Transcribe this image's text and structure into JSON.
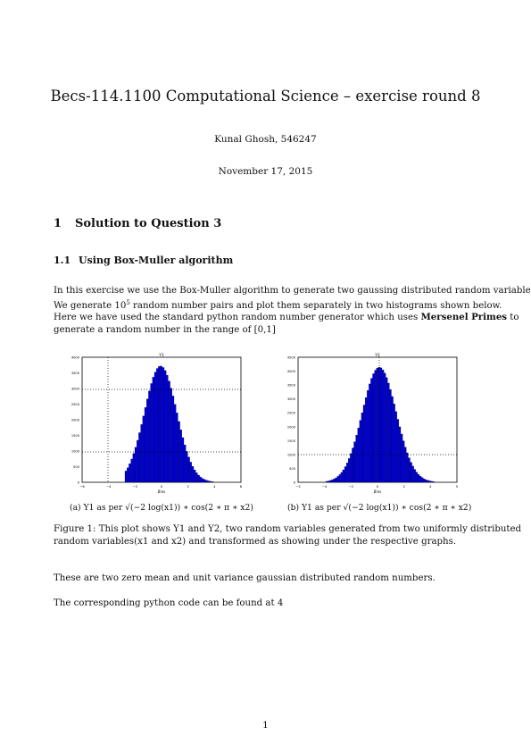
{
  "header": {
    "title": "Becs-114.1100 Computational Science – exercise round 8",
    "author": "Kunal Ghosh, 546247",
    "date": "November 17, 2015"
  },
  "section": {
    "number": "1",
    "title": "Solution to Question 3"
  },
  "subsection": {
    "number": "1.1",
    "title": "Using Box-Muller algorithm"
  },
  "paragraph1": {
    "line1": "In this exercise we use the Box-Muller algorithm to generate two gaussing distributed random variables.",
    "line2_pre": "We generate 10",
    "line2_exp": "5",
    "line2_post": " random number pairs and plot them separately in two histograms shown below.",
    "line3_pre": "Here we have used the standard python random number generator which uses ",
    "line3_bold": "Mersenel Primes",
    "line3_post": " to",
    "line4": "generate a random number in the range of [0,1]"
  },
  "figures": [
    {
      "subcaption_label": "(a)",
      "subcaption": "Y1 as per √(−2 log(x1)) ∗ cos(2 ∗ π ∗ x2)",
      "plot_title": "Y1",
      "xlabel": "Bins",
      "xticks": [
        "−6",
        "−4",
        "−2",
        "0",
        "2",
        "4",
        "6"
      ],
      "yticks": [
        "0",
        "500",
        "1000",
        "1500",
        "2000",
        "2500",
        "3000",
        "3500",
        "4000"
      ]
    },
    {
      "subcaption_label": "(b)",
      "subcaption": "Y1 as per √(−2 log(x1)) ∗ cos(2 ∗ π ∗ x2)",
      "plot_title": "Y2",
      "xlabel": "Bins",
      "xticks": [
        "−2",
        "−4",
        "−2",
        "0",
        "2",
        "4",
        "5"
      ],
      "yticks": [
        "0",
        "500",
        "1000",
        "1500",
        "2000",
        "2500",
        "3000",
        "3500",
        "4000",
        "4500"
      ]
    }
  ],
  "figure_caption": {
    "line1": "Figure 1: This plot shows Y1 and Y2, two random variables generated from two uniformly distributed",
    "line2": "random variables(x1 and x2) and transformed as showing under the respective graphs."
  },
  "paragraph2": "These are two zero mean and unit variance gaussian distributed random numbers.",
  "paragraph3": "The corresponding python code can be found at 4",
  "page_number": "1",
  "colors": {
    "bar_fill": "#0000dd",
    "bar_edge": "#000000"
  }
}
